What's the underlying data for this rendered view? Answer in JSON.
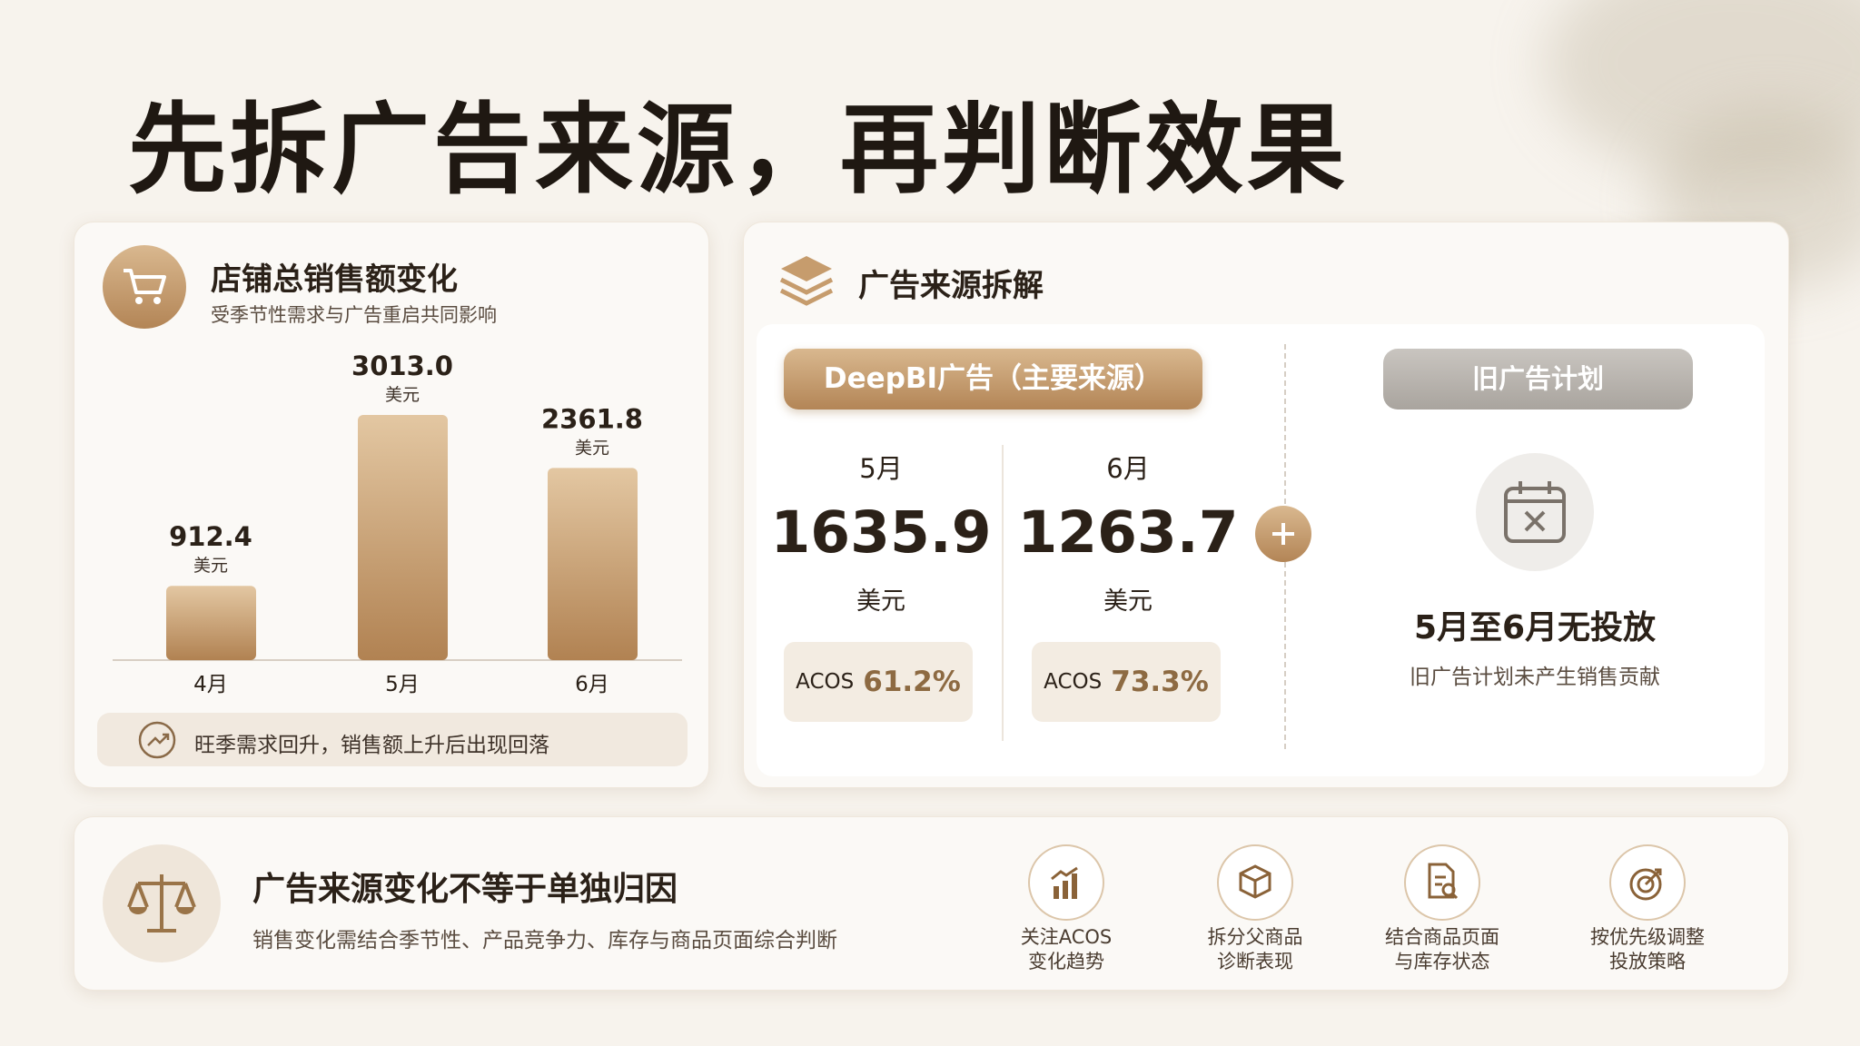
{
  "title": "先拆广告来源，再判断效果",
  "sales_card": {
    "title": "店铺总销售额变化",
    "subtitle": "受季节性需求与广告重启共同影响",
    "chart": {
      "type": "bar",
      "categories": [
        "4月",
        "5月",
        "6月"
      ],
      "values": [
        912.4,
        3013.0,
        2361.8
      ],
      "value_labels": [
        "912.4",
        "3013.0",
        "2361.8"
      ],
      "unit": "美元"
    },
    "note": "旺季需求回升，销售额上升后出现回落"
  },
  "source_card": {
    "title": "广告来源拆解",
    "deepbi": {
      "label": "DeepBI广告（主要来源）",
      "months": [
        {
          "month": "5月",
          "amount": "1635.9",
          "unit": "美元",
          "acos_label": "ACOS",
          "acos": "61.2%"
        },
        {
          "month": "6月",
          "amount": "1263.7",
          "unit": "美元",
          "acos_label": "ACOS",
          "acos": "73.3%"
        }
      ]
    },
    "old_plan": {
      "label": "旧广告计划",
      "status": "5月至6月无投放",
      "note": "旧广告计划未产生销售贡献"
    }
  },
  "conclusion": {
    "title": "广告来源变化不等于单独归因",
    "subtitle": "销售变化需结合季节性、产品竞争力、库存与商品页面综合判断",
    "actions": [
      {
        "lines": [
          "关注ACOS",
          "变化趋势"
        ]
      },
      {
        "lines": [
          "拆分父商品",
          "诊断表现"
        ]
      },
      {
        "lines": [
          "结合商品页面",
          "与库存状态"
        ]
      },
      {
        "lines": [
          "按优先级调整",
          "投放策略"
        ]
      }
    ]
  }
}
